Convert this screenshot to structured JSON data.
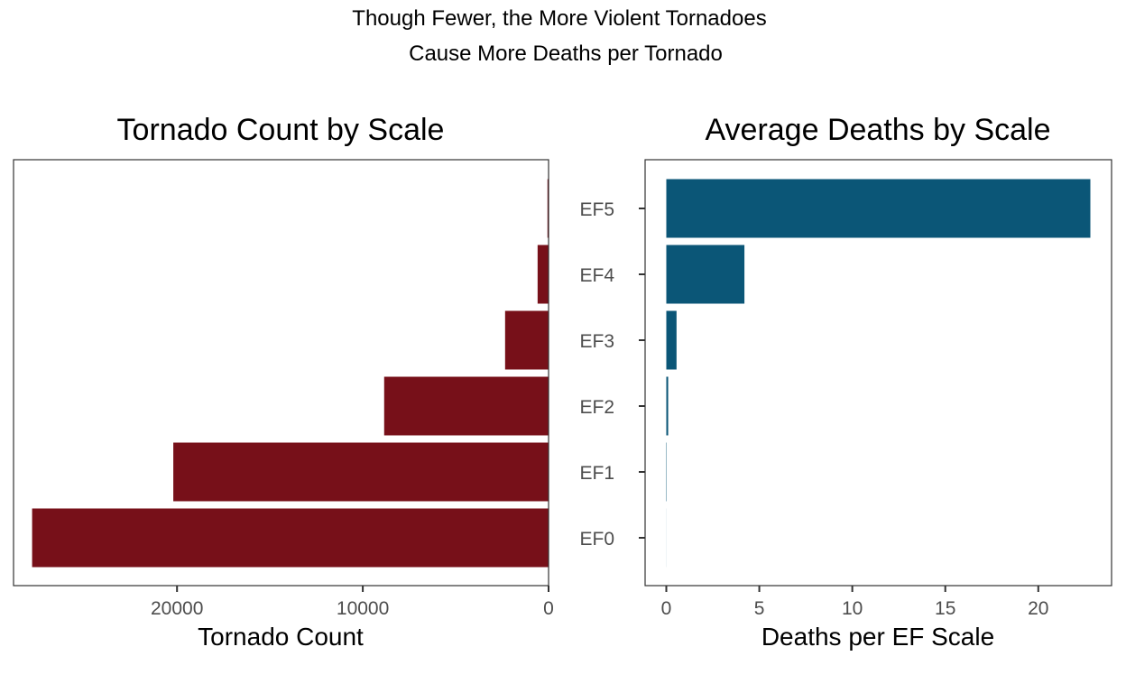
{
  "supertitle": {
    "line1": "Though Fewer, the More Violent Tornadoes",
    "line2": "Cause More Deaths per Tornado"
  },
  "chart_data": [
    {
      "type": "bar",
      "orientation": "horizontal",
      "title": "Tornado Count by Scale",
      "xlabel": "Tornado Count",
      "ylabel": "",
      "x_reversed": true,
      "y_tick_labels_visible": false,
      "categories": [
        "EF0",
        "EF1",
        "EF2",
        "EF3",
        "EF4",
        "EF5"
      ],
      "values": [
        27800,
        20200,
        8850,
        2340,
        590,
        59
      ],
      "xlim": [
        0,
        28800
      ],
      "xticks": [
        20000,
        10000,
        0
      ],
      "xtick_labels": [
        "20000",
        "10000",
        "0"
      ],
      "color": "#771019",
      "grid": false
    },
    {
      "type": "bar",
      "orientation": "horizontal",
      "title": "Average Deaths by Scale",
      "xlabel": "Deaths per EF Scale",
      "ylabel": "",
      "x_reversed": false,
      "y_tick_labels_visible": true,
      "categories": [
        "EF0",
        "EF1",
        "EF2",
        "EF3",
        "EF4",
        "EF5"
      ],
      "values": [
        0.003,
        0.02,
        0.1,
        0.55,
        4.2,
        22.8
      ],
      "xlim": [
        -1.14,
        23.94
      ],
      "xticks": [
        0,
        5,
        10,
        15,
        20
      ],
      "xtick_labels": [
        "0",
        "5",
        "10",
        "15",
        "20"
      ],
      "color": "#0B5677",
      "grid": false
    }
  ]
}
